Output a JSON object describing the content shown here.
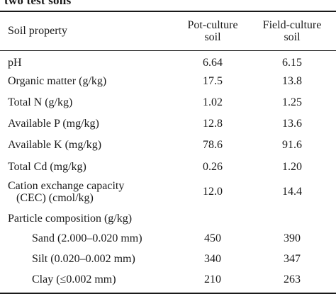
{
  "caption_fragment": "two test soils",
  "header": {
    "property": "Soil property",
    "pot_line1": "Pot-culture",
    "pot_line2": "soil",
    "field_line1": "Field-culture",
    "field_line2": "soil"
  },
  "rows": [
    {
      "property": "pH",
      "pot": "6.64",
      "field": "6.15"
    },
    {
      "property": "Organic matter (g/kg)",
      "pot": "17.5",
      "field": "13.8"
    },
    {
      "property": "Total N (g/kg)",
      "pot": "1.02",
      "field": "1.25"
    },
    {
      "property": "Available P (mg/kg)",
      "pot": "12.8",
      "field": "13.6"
    },
    {
      "property": "Available K (mg/kg)",
      "pot": "78.6",
      "field": "91.6"
    },
    {
      "property": "Total Cd (mg/kg)",
      "pot": "0.26",
      "field": "1.20"
    },
    {
      "property_line1": "Cation exchange capacity",
      "property_line2": "(CEC) (cmol/kg)",
      "pot": "12.0",
      "field": "14.4"
    },
    {
      "property": "Particle composition (g/kg)",
      "pot": "",
      "field": ""
    },
    {
      "property": "Sand (2.000–0.020 mm)",
      "pot": "450",
      "field": "390"
    },
    {
      "property": "Silt (0.020–0.002 mm)",
      "pot": "340",
      "field": "347"
    },
    {
      "property": "Clay (≤0.002 mm)",
      "pot": "210",
      "field": "263"
    }
  ]
}
